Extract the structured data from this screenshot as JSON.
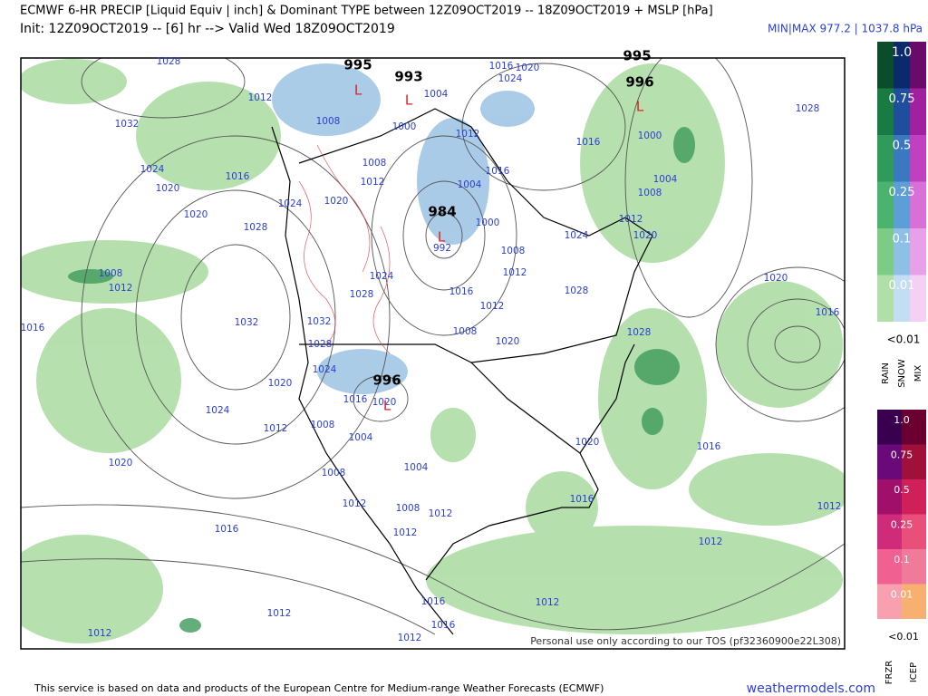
{
  "header": {
    "title": "ECMWF 6-HR PRECIP [Liquid Equiv | inch] & Dominant TYPE between 12Z09OCT2019 -- 18Z09OCT2019 + MSLP [hPa]",
    "subtitle": "Init: 12Z09OCT2019 -- [6] hr --> Valid Wed 18Z09OCT2019",
    "minmax": "MIN|MAX 977.2 | 1037.8 hPa"
  },
  "map": {
    "isobar_labels": [
      1028,
      1012,
      1032,
      1024,
      1020,
      1020,
      1016,
      1028,
      1008,
      1012,
      1016,
      1032,
      1024,
      1020,
      1016,
      1012,
      1012,
      1004,
      1000,
      1008,
      1016,
      1020,
      1024,
      1012,
      1016,
      1004,
      1000,
      992,
      1008,
      1012,
      1016,
      1012,
      1008,
      1020,
      1016,
      1000,
      1004,
      1008,
      1012,
      1024,
      1020,
      1028,
      1028,
      1020,
      1016,
      1028,
      1016,
      1020,
      1016,
      1012,
      1012,
      1012,
      1016,
      1016,
      1012,
      1012,
      1008,
      1012,
      1012,
      1004,
      1008,
      1004,
      1008,
      1012,
      1020,
      1016,
      1020,
      1024,
      1028,
      1032,
      1024,
      1028,
      1020,
      1024,
      1012,
      1008
    ],
    "low_centers": [
      995,
      993,
      995,
      996,
      984,
      996
    ],
    "low_markers": [
      "L",
      "L",
      "L",
      "L",
      "L"
    ],
    "watermark": "Personal use only according to our TOS (pf32360900e22L308)"
  },
  "legend": {
    "upper_levels": [
      "1.0",
      "0.75",
      "0.5",
      "0.25",
      "0.1",
      "0.01"
    ],
    "upper_min": "<0.01",
    "upper_types": [
      "RAIN",
      "SNOW",
      "MIX"
    ],
    "lower_levels": [
      "1.0",
      "0.75",
      "0.5",
      "0.25",
      "0.1",
      "0.01"
    ],
    "lower_min": "<0.01",
    "lower_types": [
      "FRZR",
      "ICEP"
    ]
  },
  "footer": {
    "credit": "This service is based on data and products of the European Centre for Medium-range Weather Forecasts (ECMWF)",
    "site": "weathermodels.com"
  }
}
